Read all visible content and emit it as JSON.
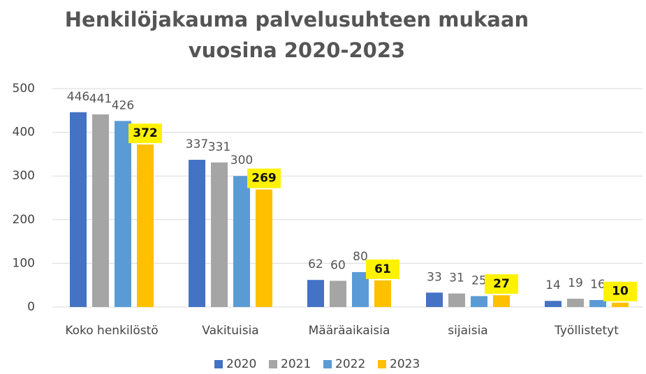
{
  "chart_data": {
    "type": "bar",
    "title": [
      "Henkilöjakauma palvelusuhteen mukaan",
      "vuosina 2020-2023"
    ],
    "categories": [
      "Koko henkilöstö",
      "Vakituisia",
      "Määräaikaisia",
      "sijaisia",
      "Työllistetyt"
    ],
    "series": [
      {
        "name": "2020",
        "color": "#4472c4",
        "values": [
          446,
          337,
          62,
          33,
          14
        ]
      },
      {
        "name": "2021",
        "color": "#a5a5a5",
        "values": [
          441,
          331,
          60,
          31,
          19
        ]
      },
      {
        "name": "2022",
        "color": "#5b9bd5",
        "values": [
          426,
          300,
          80,
          25,
          16
        ]
      },
      {
        "name": "2023",
        "color": "#ffc000",
        "values": [
          372,
          269,
          61,
          27,
          10
        ],
        "highlight": true
      }
    ],
    "ylim": [
      0,
      500
    ],
    "yticks": [
      0,
      100,
      200,
      300,
      400,
      500
    ],
    "grid": true,
    "legend": "bottom"
  }
}
